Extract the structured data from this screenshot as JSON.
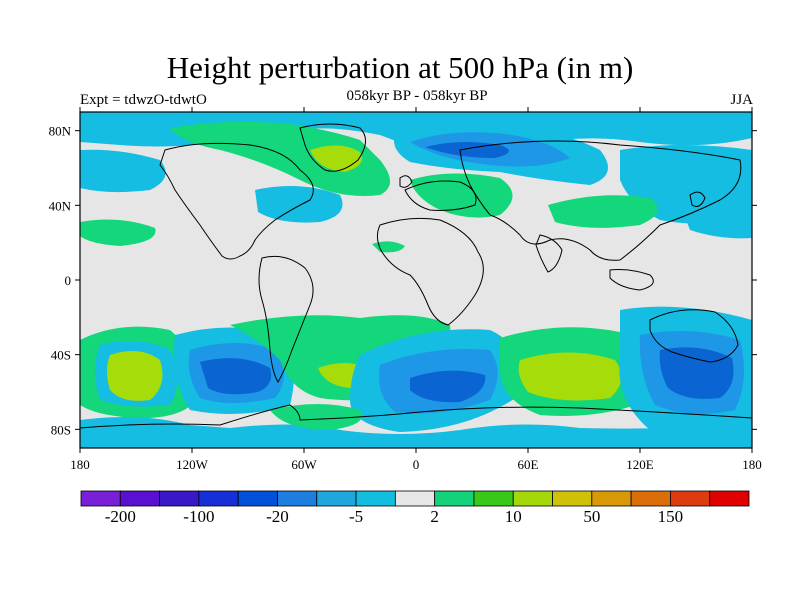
{
  "title": "Height perturbation at 500 hPa (in m)",
  "left_label": "Expt = tdwzO-tdwtO",
  "center_label": "058kyr BP - 058kyr BP",
  "right_label": "JJA",
  "lat_ticks": [
    "80N",
    "40N",
    "0",
    "40S",
    "80S"
  ],
  "lon_ticks": [
    "180",
    "120W",
    "60W",
    "0",
    "60E",
    "120E",
    "180"
  ],
  "colorbar": {
    "labels": [
      "-200",
      "-100",
      "-20",
      "-5",
      "2",
      "10",
      "50",
      "150"
    ],
    "colors": [
      "#7a1fd8",
      "#5a10d0",
      "#3a18c8",
      "#1530d8",
      "#0050d8",
      "#1e7ee0",
      "#1fa6dc",
      "#12bee0",
      "#e6e6e6",
      "#12d27a",
      "#38c81a",
      "#a4d80a",
      "#cfc00a",
      "#d89808",
      "#dc6e0a",
      "#dc3c10",
      "#e00000"
    ]
  },
  "colors": {
    "background": "#e6e6e6",
    "neg_light": "#14bde1",
    "neg_mid": "#1e98e6",
    "neg_strong": "#0a64d2",
    "pos_light": "#14d67a",
    "pos_mid": "#3cc81e",
    "pos_strong": "#a6dc0a"
  }
}
